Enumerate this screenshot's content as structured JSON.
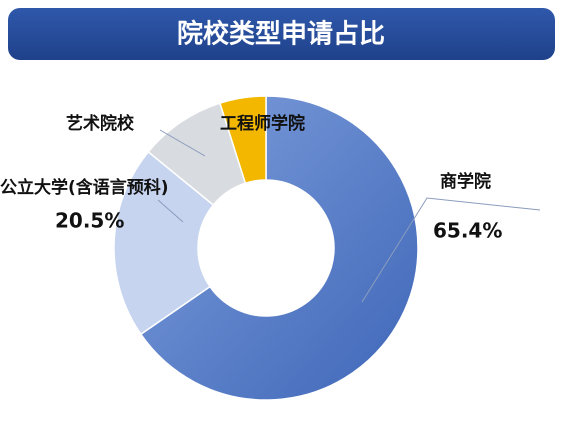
{
  "chart_data": {
    "type": "donut",
    "title": "院校类型申请占比",
    "categories": [
      "商学院",
      "公立大学(含语言预科)",
      "艺术院校",
      "工程师学院"
    ],
    "values": [
      65.4,
      20.5,
      9.2,
      4.9
    ],
    "value_labels": [
      "65.4%",
      "20.5%",
      null,
      null
    ],
    "colors": [
      "#4a72c2",
      "#c6d4ef",
      "#d8dbdf",
      "#f3b700"
    ]
  }
}
